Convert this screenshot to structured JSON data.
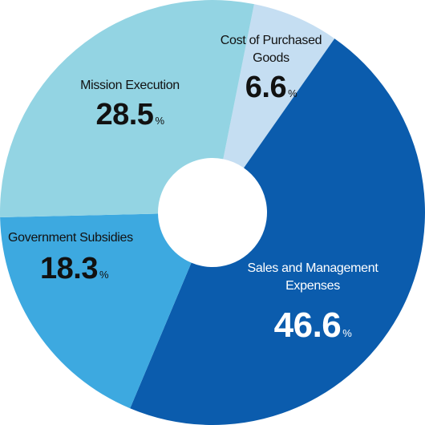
{
  "chart_data": {
    "type": "donut",
    "categories": [
      "Cost of Purchased Goods",
      "Sales and Management Expenses",
      "Government Subsidies",
      "Mission Execution"
    ],
    "values": [
      6.6,
      46.6,
      18.3,
      28.5
    ],
    "value_unit": "%",
    "colors": [
      "#c5def2",
      "#0b5cad",
      "#3da9e0",
      "#93d4e3"
    ]
  }
}
